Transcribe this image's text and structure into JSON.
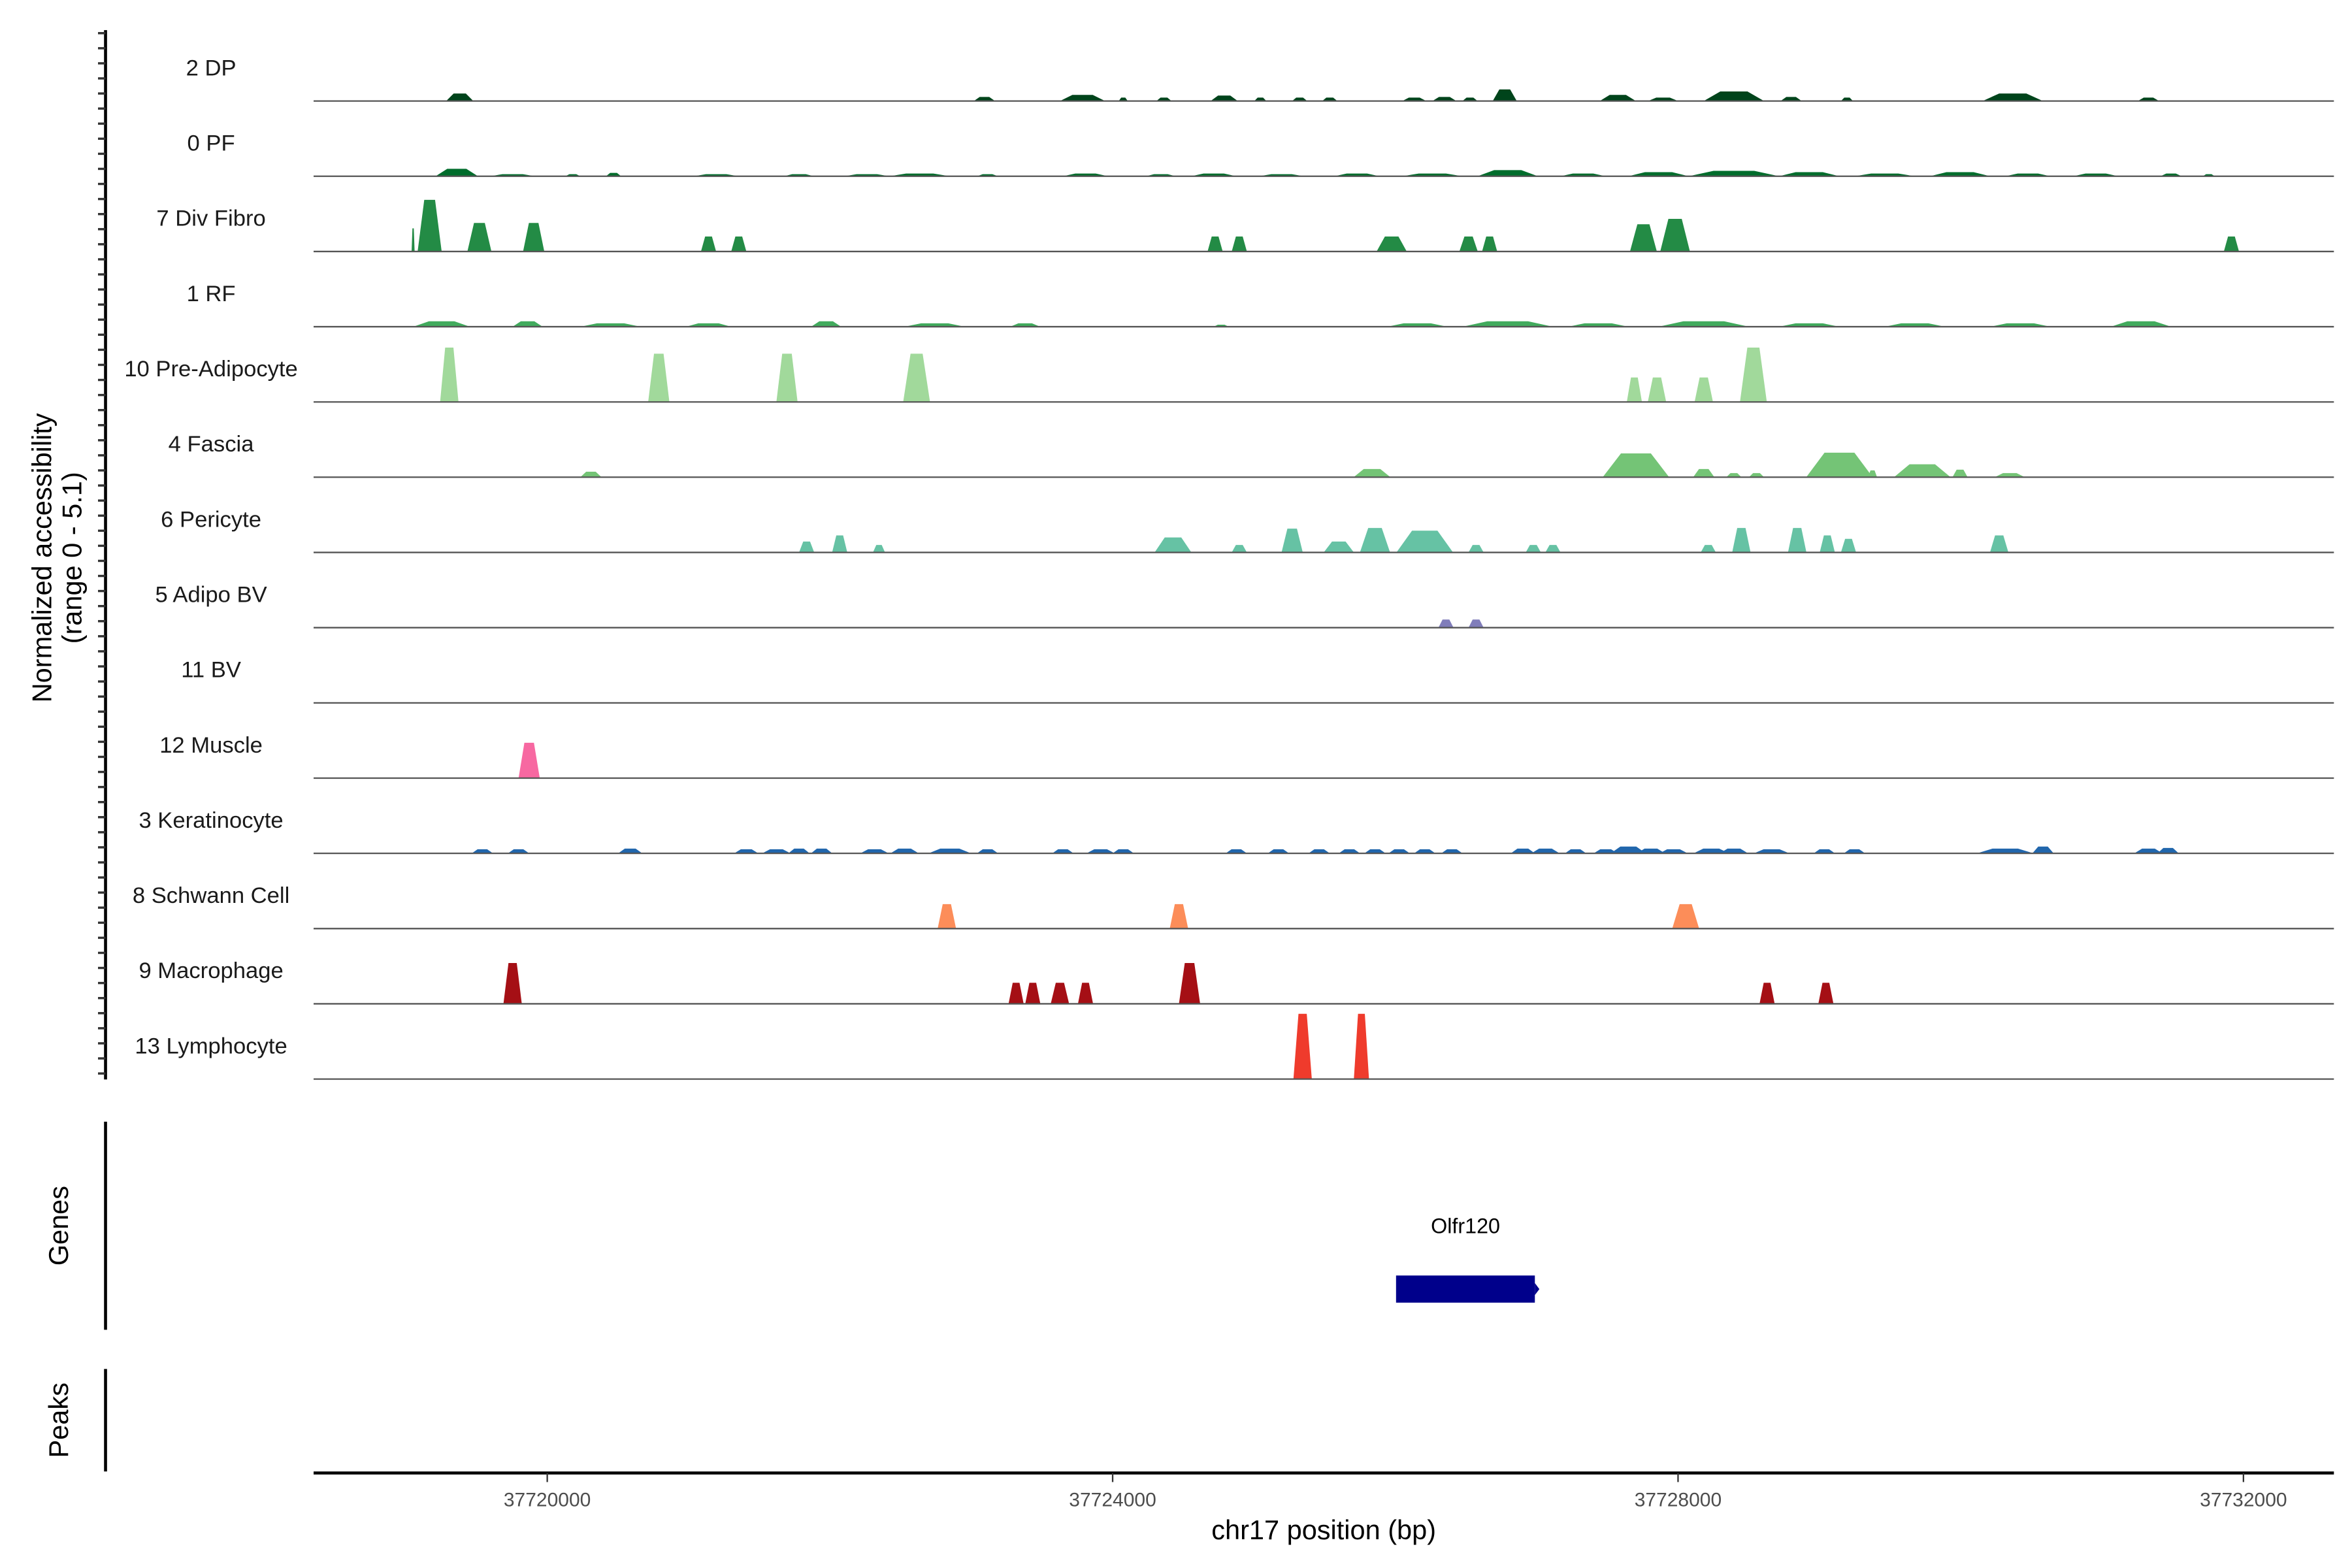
{
  "chart_data": {
    "type": "area",
    "title": "",
    "ylabel_line1": "Normalized accessibility",
    "ylabel_line2": "(range 0 - 5.1)",
    "ylim": [
      0,
      5.1
    ],
    "xlabel": "chr17 position (bp)",
    "xlim": [
      37718347,
      37732640
    ],
    "xticks": [
      37720000,
      37724000,
      37728000,
      37732000
    ],
    "xtick_labels": [
      "37720000",
      "37724000",
      "37728000",
      "37732000"
    ],
    "peak_format": "[center_bp, width_bp, value]",
    "tracks": [
      {
        "name": "2 DP",
        "color": "#00441b",
        "peaks": [
          [
            37719381,
            192,
            0.55
          ],
          [
            37723093,
            150,
            0.3
          ],
          [
            37723787,
            320,
            0.45
          ],
          [
            37724075,
            64,
            0.25
          ],
          [
            37724363,
            107,
            0.25
          ],
          [
            37724789,
            192,
            0.4
          ],
          [
            37725045,
            85,
            0.25
          ],
          [
            37725323,
            107,
            0.25
          ],
          [
            37725536,
            107,
            0.25
          ],
          [
            37726134,
            170,
            0.25
          ],
          [
            37726347,
            170,
            0.3
          ],
          [
            37726528,
            107,
            0.25
          ],
          [
            37726774,
            170,
            0.85
          ],
          [
            37727574,
            256,
            0.45
          ],
          [
            37727894,
            213,
            0.25
          ],
          [
            37728395,
            427,
            0.7
          ],
          [
            37728800,
            150,
            0.3
          ],
          [
            37729195,
            85,
            0.25
          ],
          [
            37730368,
            427,
            0.55
          ],
          [
            37731328,
            150,
            0.25
          ]
        ]
      },
      {
        "name": "0 PF",
        "color": "#006d2c",
        "peaks": [
          [
            37719360,
            300,
            0.55
          ],
          [
            37719755,
            320,
            0.15
          ],
          [
            37720181,
            107,
            0.15
          ],
          [
            37720469,
            107,
            0.25
          ],
          [
            37721195,
            320,
            0.15
          ],
          [
            37721781,
            213,
            0.15
          ],
          [
            37722261,
            320,
            0.15
          ],
          [
            37722635,
            427,
            0.2
          ],
          [
            37723115,
            150,
            0.15
          ],
          [
            37723808,
            320,
            0.2
          ],
          [
            37724341,
            213,
            0.15
          ],
          [
            37724715,
            320,
            0.2
          ],
          [
            37725195,
            320,
            0.15
          ],
          [
            37725728,
            320,
            0.2
          ],
          [
            37726262,
            427,
            0.2
          ],
          [
            37726795,
            427,
            0.45
          ],
          [
            37727328,
            320,
            0.2
          ],
          [
            37727862,
            427,
            0.3
          ],
          [
            37728395,
            640,
            0.4
          ],
          [
            37728928,
            427,
            0.3
          ],
          [
            37729462,
            427,
            0.2
          ],
          [
            37729995,
            427,
            0.3
          ],
          [
            37730475,
            320,
            0.2
          ],
          [
            37730955,
            320,
            0.2
          ],
          [
            37731488,
            150,
            0.2
          ],
          [
            37731755,
            85,
            0.15
          ]
        ]
      },
      {
        "name": "7 Div Fibro",
        "color": "#238b45",
        "peaks": [
          [
            37719051,
            20,
            1.7
          ],
          [
            37719168,
            170,
            3.8
          ],
          [
            37719520,
            170,
            2.1
          ],
          [
            37719904,
            150,
            2.1
          ],
          [
            37721141,
            107,
            1.1
          ],
          [
            37721355,
            107,
            1.1
          ],
          [
            37724725,
            107,
            1.1
          ],
          [
            37724896,
            107,
            1.1
          ],
          [
            37725974,
            213,
            1.1
          ],
          [
            37726518,
            130,
            1.1
          ],
          [
            37726667,
            107,
            1.1
          ],
          [
            37727755,
            190,
            2.0
          ],
          [
            37727979,
            210,
            2.4
          ],
          [
            37731915,
            107,
            1.1
          ]
        ]
      },
      {
        "name": "1 RF",
        "color": "#41ab5d",
        "peaks": [
          [
            37719253,
            400,
            0.4
          ],
          [
            37719861,
            213,
            0.4
          ],
          [
            37720448,
            427,
            0.25
          ],
          [
            37721141,
            320,
            0.25
          ],
          [
            37721973,
            213,
            0.4
          ],
          [
            37722741,
            427,
            0.25
          ],
          [
            37723381,
            213,
            0.25
          ],
          [
            37724768,
            107,
            0.15
          ],
          [
            37726155,
            427,
            0.25
          ],
          [
            37726795,
            640,
            0.4
          ],
          [
            37727435,
            427,
            0.25
          ],
          [
            37728182,
            640,
            0.4
          ],
          [
            37728928,
            427,
            0.25
          ],
          [
            37729675,
            427,
            0.25
          ],
          [
            37730422,
            427,
            0.25
          ],
          [
            37731275,
            427,
            0.4
          ]
        ]
      },
      {
        "name": "10 Pre-Adipocyte",
        "color": "#a1d99b",
        "peaks": [
          [
            37719307,
            130,
            4.0
          ],
          [
            37720789,
            150,
            3.55
          ],
          [
            37721696,
            150,
            3.55
          ],
          [
            37722613,
            190,
            3.55
          ],
          [
            37727691,
            107,
            1.8
          ],
          [
            37727851,
            130,
            1.8
          ],
          [
            37728182,
            130,
            1.8
          ],
          [
            37728533,
            190,
            4.0
          ]
        ]
      },
      {
        "name": "4 Fascia",
        "color": "#74c476",
        "peaks": [
          [
            37720309,
            150,
            0.4
          ],
          [
            37725835,
            260,
            0.6
          ],
          [
            37727702,
            470,
            1.75
          ],
          [
            37728182,
            150,
            0.6
          ],
          [
            37728395,
            107,
            0.3
          ],
          [
            37728555,
            107,
            0.3
          ],
          [
            37729142,
            470,
            1.8
          ],
          [
            37729376,
            64,
            0.5
          ],
          [
            37729728,
            400,
            0.95
          ],
          [
            37729995,
            107,
            0.55
          ],
          [
            37730347,
            213,
            0.3
          ]
        ]
      },
      {
        "name": "6 Pericyte",
        "color": "#66c2a4",
        "peaks": [
          [
            37721835,
            107,
            0.8
          ],
          [
            37722069,
            107,
            1.25
          ],
          [
            37722347,
            85,
            0.55
          ],
          [
            37724427,
            260,
            1.1
          ],
          [
            37724896,
            107,
            0.55
          ],
          [
            37725270,
            150,
            1.75
          ],
          [
            37725600,
            213,
            0.8
          ],
          [
            37725856,
            213,
            1.8
          ],
          [
            37726208,
            400,
            1.6
          ],
          [
            37726571,
            107,
            0.55
          ],
          [
            37726976,
            107,
            0.55
          ],
          [
            37727115,
            107,
            0.55
          ],
          [
            37728214,
            107,
            0.55
          ],
          [
            37728448,
            130,
            1.8
          ],
          [
            37728843,
            130,
            1.8
          ],
          [
            37729056,
            107,
            1.25
          ],
          [
            37729206,
            107,
            1.0
          ],
          [
            37730272,
            130,
            1.25
          ]
        ]
      },
      {
        "name": "5 Adipo BV",
        "color": "#807dba",
        "peaks": [
          [
            37726358,
            107,
            0.6
          ],
          [
            37726571,
            107,
            0.6
          ]
        ]
      },
      {
        "name": "11 BV",
        "color": "#6a51a3",
        "peaks": []
      },
      {
        "name": "12 Muscle",
        "color": "#f768a1",
        "peaks": [
          [
            37719872,
            150,
            2.6
          ]
        ]
      },
      {
        "name": "3 Keratinocyte",
        "color": "#2166ac",
        "peaks": [
          [
            37719541,
            150,
            0.3
          ],
          [
            37719797,
            150,
            0.3
          ],
          [
            37720587,
            170,
            0.35
          ],
          [
            37721408,
            170,
            0.3
          ],
          [
            37721621,
            200,
            0.3
          ],
          [
            37721781,
            150,
            0.35
          ],
          [
            37721941,
            150,
            0.35
          ],
          [
            37722315,
            200,
            0.3
          ],
          [
            37722528,
            200,
            0.35
          ],
          [
            37722848,
            300,
            0.35
          ],
          [
            37723115,
            150,
            0.3
          ],
          [
            37723648,
            150,
            0.3
          ],
          [
            37723915,
            200,
            0.3
          ],
          [
            37724075,
            150,
            0.3
          ],
          [
            37724875,
            150,
            0.3
          ],
          [
            37725173,
            150,
            0.3
          ],
          [
            37725461,
            150,
            0.3
          ],
          [
            37725675,
            150,
            0.3
          ],
          [
            37725856,
            150,
            0.3
          ],
          [
            37726027,
            150,
            0.3
          ],
          [
            37726208,
            150,
            0.3
          ],
          [
            37726400,
            150,
            0.3
          ],
          [
            37726902,
            170,
            0.35
          ],
          [
            37727062,
            200,
            0.35
          ],
          [
            37727275,
            150,
            0.3
          ],
          [
            37727488,
            170,
            0.3
          ],
          [
            37727648,
            250,
            0.5
          ],
          [
            37727808,
            200,
            0.35
          ],
          [
            37727968,
            200,
            0.3
          ],
          [
            37728235,
            250,
            0.35
          ],
          [
            37728395,
            200,
            0.35
          ],
          [
            37728662,
            250,
            0.3
          ],
          [
            37729035,
            150,
            0.3
          ],
          [
            37729248,
            150,
            0.3
          ],
          [
            37730315,
            400,
            0.35
          ],
          [
            37730582,
            150,
            0.5
          ],
          [
            37731328,
            200,
            0.35
          ],
          [
            37731467,
            150,
            0.4
          ]
        ]
      },
      {
        "name": "8 Schwann Cell",
        "color": "#fc8d59",
        "peaks": [
          [
            37722827,
            130,
            1.8
          ],
          [
            37724469,
            130,
            1.8
          ],
          [
            37728054,
            190,
            1.8
          ]
        ]
      },
      {
        "name": "9 Macrophage",
        "color": "#a50f15",
        "peaks": [
          [
            37719755,
            130,
            3.0
          ],
          [
            37723317,
            107,
            1.55
          ],
          [
            37723435,
            107,
            1.55
          ],
          [
            37723627,
            130,
            1.55
          ],
          [
            37723808,
            107,
            1.55
          ],
          [
            37724544,
            150,
            3.0
          ],
          [
            37728630,
            107,
            1.55
          ],
          [
            37729046,
            107,
            1.55
          ]
        ]
      },
      {
        "name": "13 Lymphocyte",
        "color": "#ef3b2c",
        "peaks": [
          [
            37725344,
            130,
            4.8
          ],
          [
            37725760,
            107,
            4.8
          ]
        ]
      }
    ],
    "genes_label": "Genes",
    "genes": [
      {
        "name": "Olfr120",
        "start": 37726005,
        "end": 37726987,
        "strand": "+",
        "color": "#00008b"
      }
    ],
    "peaks_label": "Peaks",
    "peaks_regions": []
  }
}
